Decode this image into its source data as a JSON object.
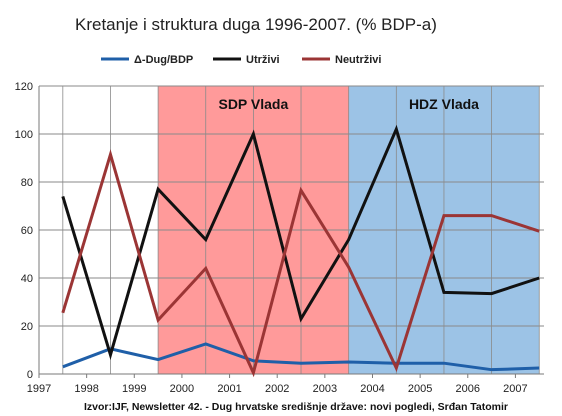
{
  "chart_data": {
    "type": "line",
    "title": "Kretanje i struktura duga 1996-2007. (% BDP-a)",
    "xlabel": "",
    "ylabel": "",
    "xlim": [
      1997,
      2007.6
    ],
    "ylim": [
      0,
      120
    ],
    "x_ticks": [
      "1997",
      "1998",
      "1999",
      "2000",
      "2001",
      "2002",
      "2003",
      "2004",
      "2005",
      "2006",
      "2007"
    ],
    "y_ticks": [
      "0",
      "20",
      "40",
      "60",
      "80",
      "100",
      "120"
    ],
    "grid": "horizontal",
    "legend_position": "top",
    "shaded_regions": [
      {
        "label": "SDP Vlada",
        "from": 1999.5,
        "to": 2003.5,
        "color": "#ff9a9a"
      },
      {
        "label": "HDZ Vlada",
        "from": 2003.5,
        "to": 2007.5,
        "color": "#9cc3e6"
      }
    ],
    "x": [
      1997.5,
      1998.5,
      1999.5,
      2000.5,
      2001.5,
      2002.5,
      2003.5,
      2004.5,
      2005.5,
      2006.5,
      2007.5
    ],
    "series": [
      {
        "name": "Δ-Dug/BDP",
        "color": "#1f5fa8",
        "values": [
          3,
          10.5,
          6,
          12.5,
          5.5,
          4.5,
          5,
          4.5,
          4.5,
          1.8,
          2.5
        ]
      },
      {
        "name": "Utrživi",
        "color": "#111111",
        "values": [
          74,
          8,
          77,
          56,
          100,
          23,
          56,
          102,
          34,
          33.5,
          40
        ]
      },
      {
        "name": "Neutrživi",
        "color": "#9b3535",
        "values": [
          25.5,
          91.5,
          22.5,
          44,
          0.5,
          76.5,
          44.5,
          2.5,
          66,
          66,
          59.5
        ]
      }
    ],
    "source": "Izvor:IJF, Newsletter 42. - Dug hrvatske središnje države: novi pogledi, Srđan Tatomir"
  }
}
